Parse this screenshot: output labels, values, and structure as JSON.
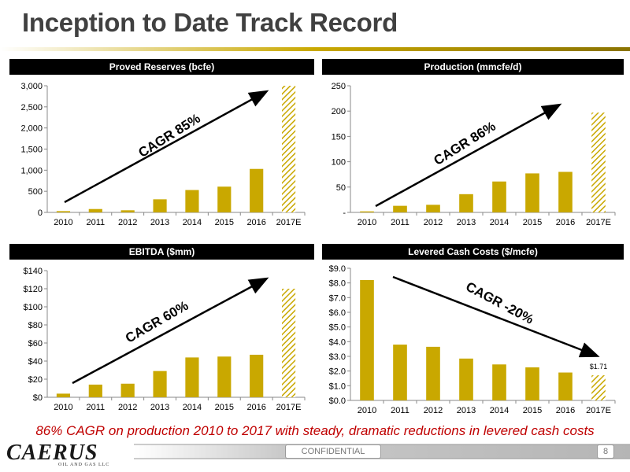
{
  "page": {
    "title": "Inception to Date Track Record",
    "footer_note": "86% CAGR on production 2010 to 2017 with steady, dramatic reductions in levered cash costs",
    "confidential": "CONFIDENTIAL",
    "page_number": "8",
    "logo_text": "CAERUS",
    "logo_subtext": "OIL AND GAS LLC",
    "colors": {
      "accent": "#c9a800",
      "title_rule": "#c9a800",
      "header_bg": "#000000",
      "note": "#c00000"
    }
  },
  "chart_data": [
    {
      "type": "bar",
      "title": "Proved Reserves (bcfe)",
      "categories": [
        "2010",
        "2011",
        "2012",
        "2013",
        "2014",
        "2015",
        "2016",
        "2017E"
      ],
      "values": [
        30,
        80,
        50,
        310,
        530,
        610,
        1030,
        3000
      ],
      "hatched_last": true,
      "ylim": [
        0,
        3000
      ],
      "yticks": [
        0,
        500,
        1000,
        1500,
        2000,
        2500,
        3000
      ],
      "ytick_labels": [
        "0",
        "500",
        "1,000",
        "1,500",
        "2,000",
        "2,500",
        "3,000"
      ],
      "annotation": "CAGR 85%",
      "arrow": "up"
    },
    {
      "type": "bar",
      "title": "Production (mmcfe/d)",
      "categories": [
        "2010",
        "2011",
        "2012",
        "2013",
        "2014",
        "2015",
        "2016",
        "2017E"
      ],
      "values": [
        2,
        13,
        15,
        36,
        61,
        77,
        80,
        197
      ],
      "hatched_last": true,
      "ylim": [
        0,
        250
      ],
      "yticks": [
        0,
        50,
        100,
        150,
        200,
        250
      ],
      "ytick_labels": [
        "-",
        "50",
        "100",
        "150",
        "200",
        "250"
      ],
      "annotation": "CAGR 86%",
      "arrow": "up"
    },
    {
      "type": "bar",
      "title": "EBITDA ($mm)",
      "categories": [
        "2010",
        "2011",
        "2012",
        "2013",
        "2014",
        "2015",
        "2016",
        "2017E"
      ],
      "values": [
        4,
        14,
        15,
        29,
        44,
        45,
        47,
        120
      ],
      "hatched_last": true,
      "ylim": [
        0,
        140
      ],
      "yticks": [
        0,
        20,
        40,
        60,
        80,
        100,
        120,
        140
      ],
      "ytick_labels": [
        "$0",
        "$20",
        "$40",
        "$60",
        "$80",
        "$100",
        "$120",
        "$140"
      ],
      "annotation": "CAGR 60%",
      "arrow": "up"
    },
    {
      "type": "bar",
      "title": "Levered Cash Costs ($/mcfe)",
      "categories": [
        "2010",
        "2011",
        "2012",
        "2013",
        "2014",
        "2015",
        "2016",
        "2017E"
      ],
      "values": [
        8.2,
        3.8,
        3.65,
        2.85,
        2.45,
        2.25,
        1.9,
        1.71
      ],
      "hatched_last": true,
      "data_label_last": "$1.71",
      "ylim": [
        0,
        9
      ],
      "yticks": [
        0,
        1,
        2,
        3,
        4,
        5,
        6,
        7,
        8,
        9
      ],
      "ytick_labels": [
        "$0.0",
        "$1.0",
        "$2.0",
        "$3.0",
        "$4.0",
        "$5.0",
        "$6.0",
        "$7.0",
        "$8.0",
        "$9.0"
      ],
      "annotation": "CAGR -20%",
      "arrow": "down"
    }
  ]
}
